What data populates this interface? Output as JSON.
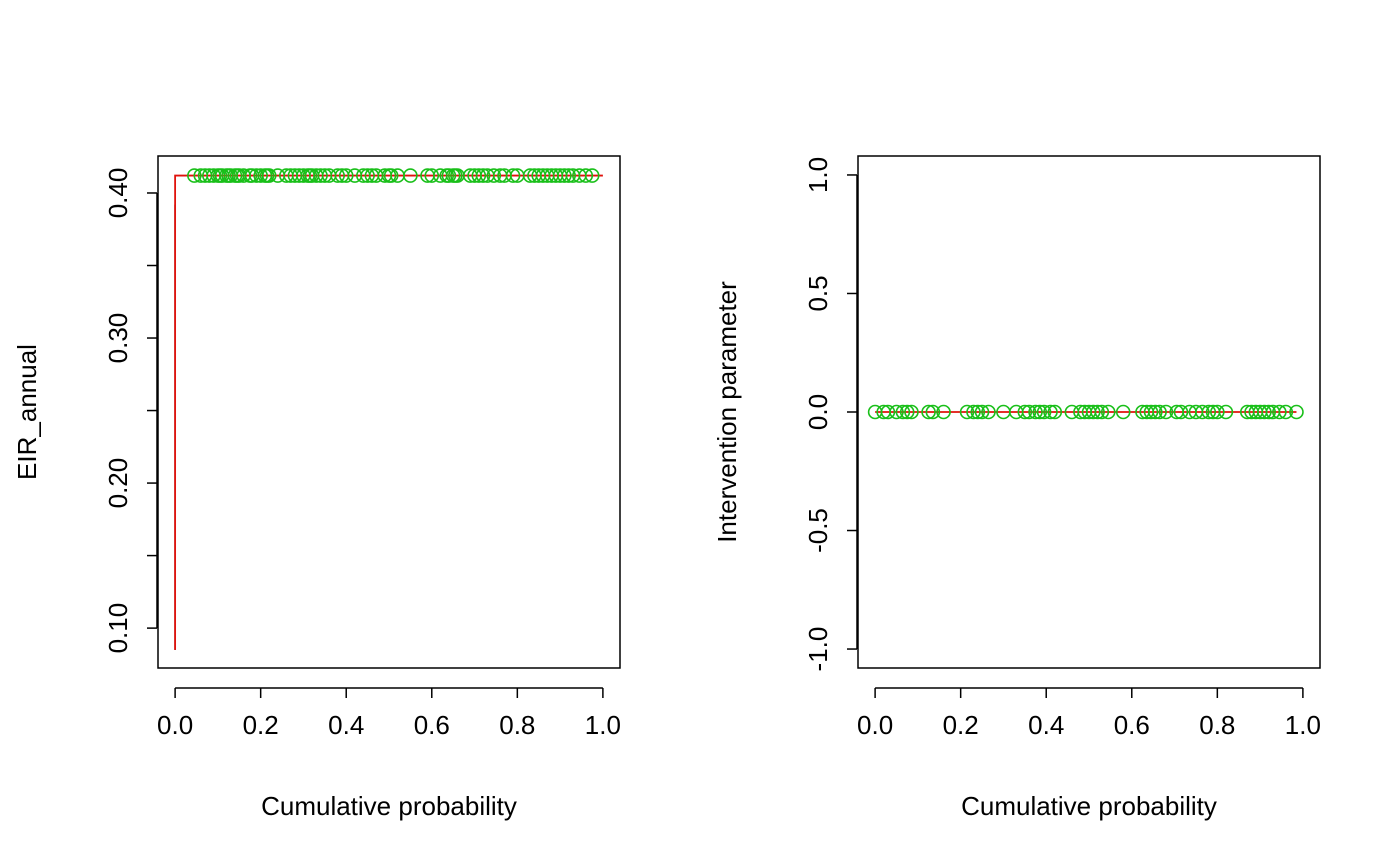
{
  "chart_data": [
    {
      "type": "line",
      "xlabel": "Cumulative probability",
      "ylabel": "EIR_annual",
      "xlim": [
        -0.04,
        1.04
      ],
      "ylim": [
        0.0725,
        0.4255
      ],
      "xticks": [
        "0.0",
        "0.2",
        "0.4",
        "0.6",
        "0.8",
        "1.0"
      ],
      "xtick_values": [
        0.0,
        0.2,
        0.4,
        0.6,
        0.8,
        1.0
      ],
      "yticks": [
        "0.10",
        "0.15",
        "0.20",
        "0.25",
        "0.30",
        "0.35",
        "0.40"
      ],
      "ytick_values": [
        0.1,
        0.15,
        0.2,
        0.25,
        0.3,
        0.35,
        0.4
      ],
      "ytick_labels_shown": [
        true,
        false,
        true,
        false,
        true,
        false,
        true
      ],
      "grid": false,
      "colors": {
        "ecdf": "#e0120c",
        "points": "#19bf19",
        "axis": "#000000"
      },
      "ecdf_line": {
        "x": [
          0.0,
          0.0,
          0.0,
          1.0
        ],
        "y": [
          0.085,
          0.085,
          0.412,
          0.412
        ]
      },
      "vertical_black_line": {
        "x": 0.0,
        "y": [
          0.085,
          0.392
        ]
      },
      "points": {
        "y": 0.412,
        "x": [
          0.045,
          0.06,
          0.07,
          0.08,
          0.09,
          0.1,
          0.105,
          0.11,
          0.12,
          0.125,
          0.13,
          0.14,
          0.145,
          0.15,
          0.16,
          0.175,
          0.18,
          0.19,
          0.2,
          0.21,
          0.215,
          0.22,
          0.24,
          0.26,
          0.27,
          0.28,
          0.29,
          0.3,
          0.31,
          0.315,
          0.32,
          0.33,
          0.34,
          0.35,
          0.36,
          0.38,
          0.39,
          0.4,
          0.42,
          0.44,
          0.45,
          0.46,
          0.47,
          0.49,
          0.5,
          0.505,
          0.52,
          0.55,
          0.59,
          0.6,
          0.62,
          0.635,
          0.64,
          0.65,
          0.655,
          0.66,
          0.69,
          0.7,
          0.71,
          0.72,
          0.73,
          0.745,
          0.76,
          0.77,
          0.79,
          0.8,
          0.83,
          0.84,
          0.85,
          0.86,
          0.87,
          0.88,
          0.89,
          0.9,
          0.91,
          0.92,
          0.93,
          0.945,
          0.96,
          0.975
        ]
      }
    },
    {
      "type": "line",
      "xlabel": "Cumulative probability",
      "ylabel": "Intervention parameter",
      "xlim": [
        -0.04,
        1.04
      ],
      "ylim": [
        -1.08,
        1.08
      ],
      "xticks": [
        "0.0",
        "0.2",
        "0.4",
        "0.6",
        "0.8",
        "1.0"
      ],
      "xtick_values": [
        0.0,
        0.2,
        0.4,
        0.6,
        0.8,
        1.0
      ],
      "yticks": [
        "-1.0",
        "-0.5",
        "0.0",
        "0.5",
        "1.0"
      ],
      "ytick_values": [
        -1.0,
        -0.5,
        0.0,
        0.5,
        1.0
      ],
      "ytick_labels_shown": [
        true,
        true,
        true,
        true,
        true
      ],
      "grid": false,
      "colors": {
        "ecdf": "#e0120c",
        "points": "#19bf19",
        "axis": "#000000"
      },
      "ecdf_line": {
        "x": [
          0.0,
          0.985
        ],
        "y": [
          0.0,
          0.0
        ]
      },
      "points": {
        "y": 0.0,
        "x": [
          0.0,
          0.02,
          0.03,
          0.05,
          0.065,
          0.075,
          0.085,
          0.125,
          0.135,
          0.16,
          0.215,
          0.23,
          0.24,
          0.25,
          0.265,
          0.3,
          0.33,
          0.35,
          0.36,
          0.375,
          0.385,
          0.395,
          0.41,
          0.42,
          0.46,
          0.48,
          0.49,
          0.5,
          0.51,
          0.52,
          0.53,
          0.545,
          0.58,
          0.625,
          0.635,
          0.645,
          0.655,
          0.665,
          0.68,
          0.705,
          0.715,
          0.735,
          0.75,
          0.765,
          0.78,
          0.79,
          0.8,
          0.82,
          0.87,
          0.88,
          0.89,
          0.9,
          0.91,
          0.92,
          0.93,
          0.945,
          0.96,
          0.985
        ]
      }
    }
  ]
}
